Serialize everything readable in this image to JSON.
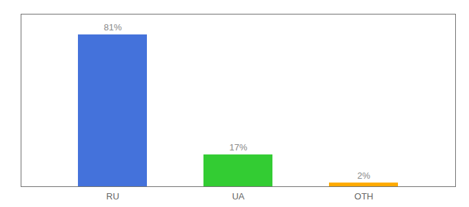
{
  "chart_data": {
    "type": "bar",
    "categories": [
      "RU",
      "UA",
      "OTH"
    ],
    "values": [
      81,
      17,
      2
    ],
    "value_labels": [
      "81%",
      "17%",
      "2%"
    ],
    "colors": [
      "#4472db",
      "#33cc33",
      "#ffaa00"
    ],
    "ylim": [
      0,
      92
    ],
    "data_labels": true,
    "tick_labels": "x"
  }
}
